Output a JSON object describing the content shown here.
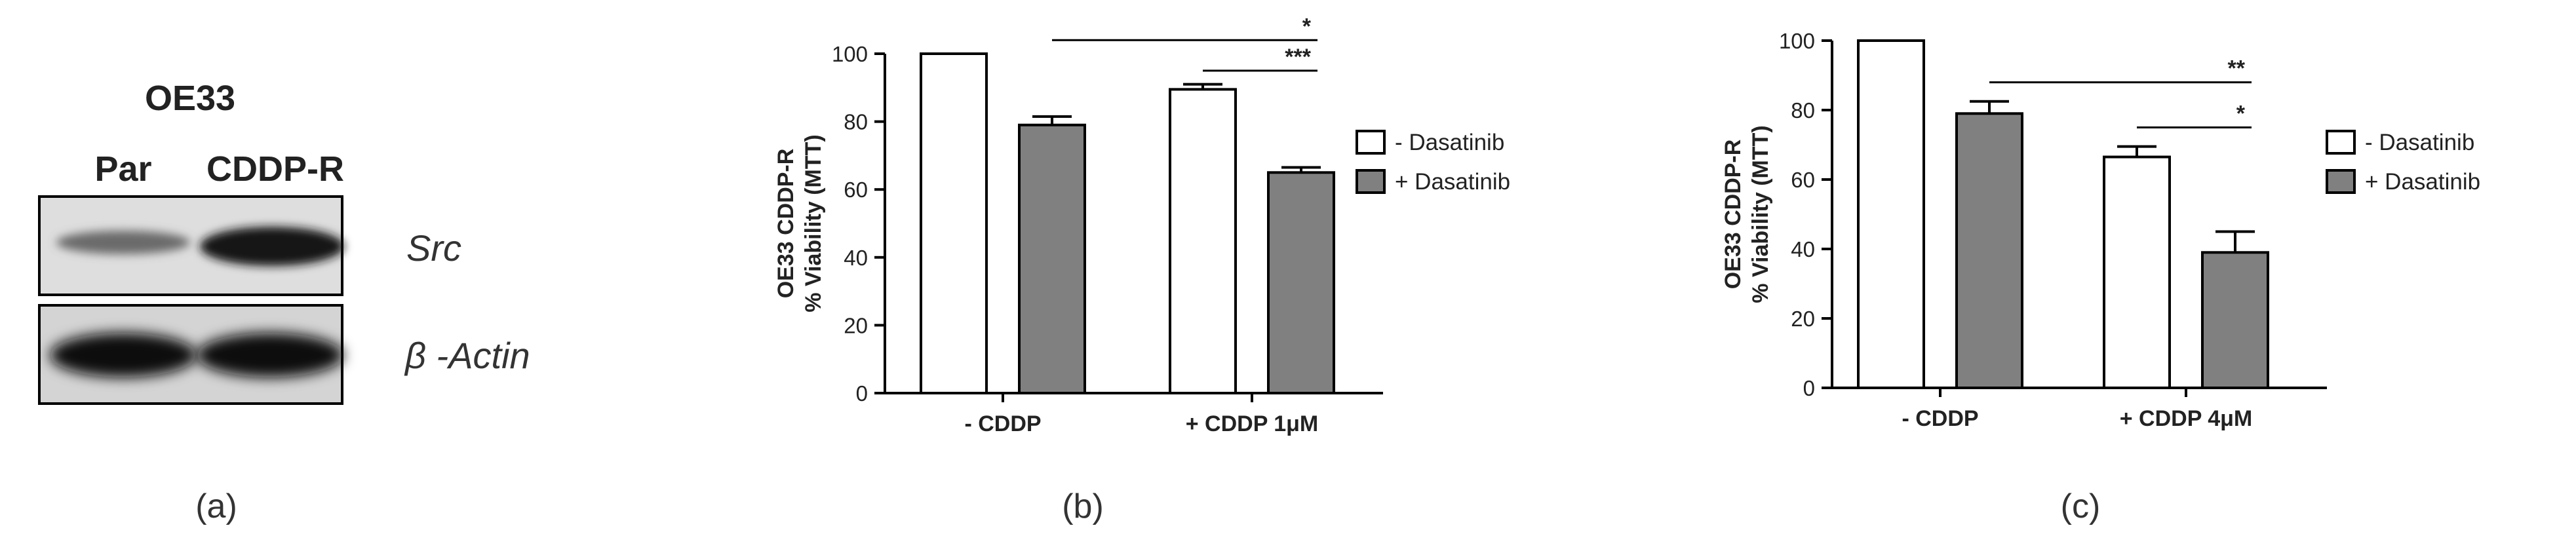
{
  "blot": {
    "cell_line": "OE33",
    "lane_labels": [
      "Par",
      "CDDP-R"
    ],
    "band_labels": [
      "Src",
      "β -Actin"
    ],
    "panel_label": "(a)"
  },
  "chart_data": [
    {
      "type": "bar",
      "panel_label": "(b)",
      "ylabel_line1": "OE33 CDDP-R",
      "ylabel_line2": "% Viability (MTT)",
      "ylim": [
        0,
        100
      ],
      "yticks": [
        0,
        20,
        40,
        60,
        80,
        100
      ],
      "categories": [
        "- CDDP",
        "+ CDDP 1μM"
      ],
      "series": [
        {
          "name": "- Dasatinib",
          "values": [
            100,
            89.5
          ],
          "errors": [
            0,
            1.5
          ],
          "color": "#ffffff"
        },
        {
          "name": "+ Dasatinib",
          "values": [
            79,
            65
          ],
          "errors": [
            2.5,
            1.5
          ],
          "color": "#808080"
        }
      ],
      "significance": [
        {
          "label": "*",
          "from_category": 0,
          "from_series": 1,
          "to_category": 1,
          "to_series": 1,
          "y": 104
        },
        {
          "label": "***",
          "from_category": 1,
          "from_series": 0,
          "to_category": 1,
          "to_series": 1,
          "y": 95
        }
      ],
      "legend_position": "right",
      "grid": false
    },
    {
      "type": "bar",
      "panel_label": "(c)",
      "ylabel_line1": "OE33 CDDP-R",
      "ylabel_line2": "% Viability (MTT)",
      "ylim": [
        0,
        100
      ],
      "yticks": [
        0,
        20,
        40,
        60,
        80,
        100
      ],
      "categories": [
        "- CDDP",
        "+ CDDP 4μM"
      ],
      "series": [
        {
          "name": "- Dasatinib",
          "values": [
            100,
            66.5
          ],
          "errors": [
            0,
            3
          ],
          "color": "#ffffff"
        },
        {
          "name": "+ Dasatinib",
          "values": [
            79,
            39
          ],
          "errors": [
            3.5,
            6
          ],
          "color": "#808080"
        }
      ],
      "significance": [
        {
          "label": "**",
          "from_category": 0,
          "from_series": 1,
          "to_category": 1,
          "to_series": 1,
          "y": 88
        },
        {
          "label": "*",
          "from_category": 1,
          "from_series": 0,
          "to_category": 1,
          "to_series": 1,
          "y": 75
        }
      ],
      "legend_position": "right",
      "grid": false
    }
  ]
}
